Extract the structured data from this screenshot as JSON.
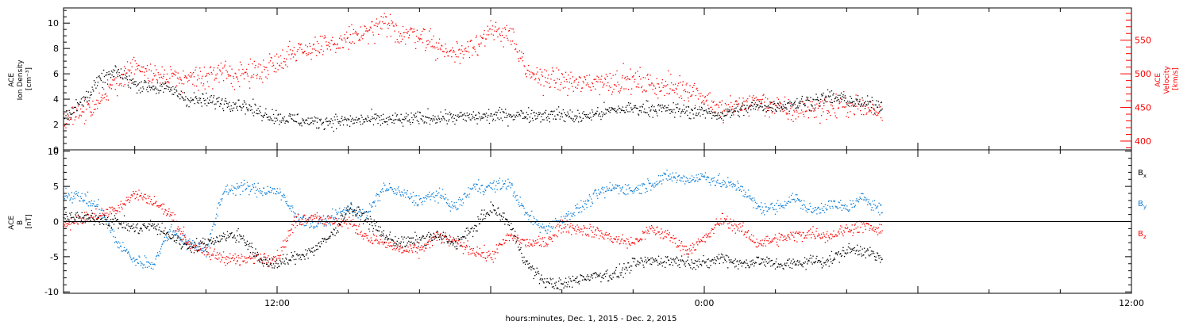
{
  "chart_data": [
    {
      "type": "scatter",
      "panel": "top",
      "xlabel": "hours:minutes, Dec.  1, 2015 - Dec.  2, 2015",
      "x_unit": "hours since 2015-12-01 00:00",
      "xlim": [
        6,
        36
      ],
      "x_ticks": [
        {
          "at": 12,
          "label": "12:00"
        },
        {
          "at": 24,
          "label": "0:00"
        },
        {
          "at": 36,
          "label": "12:00"
        }
      ],
      "ylabel_left": [
        "ACE",
        "Ion Density",
        "[cm⁻³]"
      ],
      "ylim_left": [
        0,
        11.2
      ],
      "y_ticks_left": [
        0,
        2,
        4,
        6,
        8,
        10
      ],
      "ylabel_right": [
        "ACE",
        "Velocity",
        "[km/s]"
      ],
      "ylim_right": [
        387,
        598
      ],
      "y_ticks_right": [
        400,
        450,
        500,
        550
      ],
      "grid": false,
      "series": [
        {
          "name": "",
          "axis": "left",
          "color": "#000000",
          "x": [
            6.0,
            6.5,
            7.0,
            7.5,
            8.0,
            8.5,
            9.0,
            9.5,
            10.0,
            10.5,
            11.0,
            11.5,
            12.0,
            12.5,
            13.0,
            13.5,
            14.0,
            14.5,
            15.0,
            15.5,
            16.0,
            16.5,
            17.0,
            17.5,
            18.0,
            18.5,
            19.0,
            19.5,
            20.0,
            20.5,
            21.0,
            21.5,
            22.0,
            22.5,
            23.0,
            23.5,
            24.0,
            24.5,
            25.0,
            25.5,
            26.0,
            26.5,
            27.0,
            27.5,
            28.0,
            28.5,
            29.0
          ],
          "y": [
            2.6,
            3.8,
            5.5,
            6.2,
            5.2,
            5.0,
            4.8,
            4.0,
            3.9,
            3.8,
            3.6,
            3.0,
            2.6,
            2.4,
            2.2,
            2.3,
            2.3,
            2.4,
            2.4,
            2.4,
            2.5,
            2.6,
            2.6,
            2.6,
            2.7,
            2.8,
            2.8,
            2.8,
            2.8,
            2.6,
            2.9,
            3.2,
            3.3,
            3.3,
            3.2,
            3.1,
            3.0,
            2.8,
            3.2,
            3.5,
            3.5,
            3.7,
            3.9,
            4.2,
            4.0,
            3.6,
            3.6
          ]
        },
        {
          "name": "",
          "axis": "right",
          "color": "#ff0000",
          "x": [
            6.0,
            6.5,
            7.0,
            7.5,
            8.0,
            8.5,
            9.0,
            9.5,
            10.0,
            10.5,
            11.0,
            11.5,
            12.0,
            12.5,
            13.0,
            13.5,
            14.0,
            14.5,
            15.0,
            15.5,
            16.0,
            16.5,
            17.0,
            17.5,
            18.0,
            18.5,
            19.0,
            19.5,
            20.0,
            20.5,
            21.0,
            21.5,
            22.0,
            22.5,
            23.0,
            23.5,
            24.0,
            24.5,
            25.0,
            25.5,
            26.0,
            26.5,
            27.0,
            27.5,
            28.0,
            28.5,
            29.0
          ],
          "y": [
            430,
            445,
            460,
            490,
            510,
            500,
            495,
            495,
            495,
            500,
            500,
            505,
            520,
            535,
            540,
            540,
            555,
            560,
            575,
            560,
            560,
            540,
            530,
            545,
            560,
            565,
            500,
            495,
            490,
            485,
            490,
            490,
            490,
            485,
            480,
            480,
            465,
            445,
            455,
            460,
            450,
            445,
            450,
            450,
            455,
            450,
            445
          ]
        }
      ]
    },
    {
      "type": "scatter",
      "panel": "bottom",
      "xlabel": "hours:minutes, Dec.  1, 2015 - Dec.  2, 2015",
      "x_unit": "hours since 2015-12-01 00:00",
      "xlim": [
        6,
        36
      ],
      "ylabel": [
        "ACE",
        "B",
        "[nT]"
      ],
      "ylim": [
        -10.2,
        10.2
      ],
      "y_ticks": [
        -10,
        -5,
        0,
        5,
        10
      ],
      "grid": false,
      "zero_line": true,
      "legend_position": "right",
      "series": [
        {
          "name": "B",
          "subscript": "x",
          "color": "#000000",
          "x": [
            6.0,
            6.5,
            7.0,
            7.5,
            8.0,
            8.5,
            9.0,
            9.5,
            10.0,
            10.5,
            11.0,
            11.5,
            12.0,
            12.5,
            13.0,
            13.5,
            14.0,
            14.5,
            15.0,
            15.5,
            16.0,
            16.5,
            17.0,
            17.5,
            18.0,
            18.5,
            19.0,
            19.5,
            20.0,
            20.5,
            21.0,
            21.5,
            22.0,
            22.5,
            23.0,
            23.5,
            24.0,
            24.5,
            25.0,
            25.5,
            26.0,
            26.5,
            27.0,
            27.5,
            28.0,
            28.5,
            29.0
          ],
          "y": [
            1.0,
            0.5,
            0.5,
            0.0,
            -1.0,
            -0.5,
            -2.0,
            -3.5,
            -3.0,
            -2.0,
            -2.0,
            -5.5,
            -6.0,
            -5.0,
            -4.0,
            -2.0,
            2.0,
            0.5,
            -2.0,
            -3.0,
            -2.5,
            -2.0,
            -3.0,
            -1.0,
            2.0,
            0.0,
            -6.0,
            -8.5,
            -9.0,
            -8.0,
            -7.5,
            -7.5,
            -6.0,
            -5.5,
            -5.5,
            -5.5,
            -6.0,
            -5.0,
            -6.0,
            -5.5,
            -6.0,
            -6.0,
            -5.5,
            -5.5,
            -4.0,
            -4.0,
            -5.5
          ]
        },
        {
          "name": "B",
          "subscript": "y",
          "color": "#0a7cd6",
          "x": [
            6.0,
            6.5,
            7.0,
            7.5,
            8.0,
            8.5,
            9.0,
            9.5,
            10.0,
            10.5,
            11.0,
            11.5,
            12.0,
            12.5,
            13.0,
            13.5,
            14.0,
            14.5,
            15.0,
            15.5,
            16.0,
            16.5,
            17.0,
            17.5,
            18.0,
            18.5,
            19.0,
            19.5,
            20.0,
            20.5,
            21.0,
            21.5,
            22.0,
            22.5,
            23.0,
            23.5,
            24.0,
            24.5,
            25.0,
            25.5,
            26.0,
            26.5,
            27.0,
            27.5,
            28.0,
            28.5,
            29.0
          ],
          "y": [
            4.0,
            3.5,
            2.0,
            -3.0,
            -5.5,
            -6.0,
            -1.0,
            -3.0,
            -4.0,
            4.5,
            5.0,
            4.5,
            4.5,
            1.0,
            -0.5,
            0.5,
            2.0,
            1.0,
            5.0,
            4.0,
            3.0,
            4.0,
            2.0,
            5.0,
            5.0,
            5.5,
            1.0,
            -1.0,
            0.5,
            2.0,
            4.0,
            5.0,
            4.5,
            5.5,
            6.5,
            6.0,
            6.5,
            5.5,
            5.0,
            2.0,
            2.0,
            3.5,
            1.5,
            2.5,
            2.0,
            3.5,
            1.5
          ]
        },
        {
          "name": "B",
          "subscript": "z",
          "color": "#ff0000",
          "x": [
            6.0,
            6.5,
            7.0,
            7.5,
            8.0,
            8.5,
            9.0,
            9.5,
            10.0,
            10.5,
            11.0,
            11.5,
            12.0,
            12.5,
            13.0,
            13.5,
            14.0,
            14.5,
            15.0,
            15.5,
            16.0,
            16.5,
            17.0,
            17.5,
            18.0,
            18.5,
            19.0,
            19.5,
            20.0,
            20.5,
            21.0,
            21.5,
            22.0,
            22.5,
            23.0,
            23.5,
            24.0,
            24.5,
            25.0,
            25.5,
            26.0,
            26.5,
            27.0,
            27.5,
            28.0,
            28.5,
            29.0
          ],
          "y": [
            -0.5,
            0.5,
            1.0,
            2.0,
            4.0,
            3.0,
            1.0,
            -3.0,
            -4.5,
            -5.0,
            -5.5,
            -5.0,
            -5.0,
            0.0,
            1.0,
            0.0,
            0.0,
            -2.0,
            -3.0,
            -4.0,
            -4.0,
            -2.0,
            -3.0,
            -4.0,
            -5.0,
            -2.0,
            -3.0,
            -3.0,
            -0.5,
            -1.0,
            -1.5,
            -2.5,
            -3.0,
            -1.0,
            -2.0,
            -4.0,
            -2.5,
            0.5,
            -1.0,
            -3.0,
            -2.5,
            -2.0,
            -1.5,
            -2.0,
            -1.0,
            -0.5,
            -1.5
          ]
        }
      ]
    }
  ]
}
